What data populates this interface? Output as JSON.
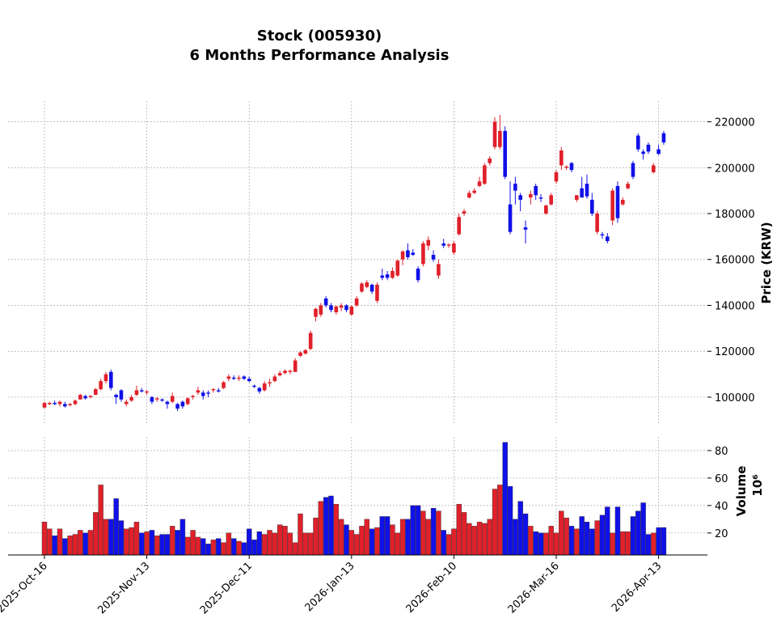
{
  "chart_data": {
    "type": "candlestick",
    "title": "Stock (005930)",
    "subtitle": "6 Months Performance Analysis",
    "ylabel": "Price (KRW)",
    "up_color": "#e0202a",
    "down_color": "#1010e8",
    "grid": true,
    "ylim": [
      88000,
      229000
    ],
    "yticks": [
      100000,
      120000,
      140000,
      160000,
      180000,
      200000,
      220000
    ],
    "categories": [
      "2025-Oct-16",
      null,
      null,
      null,
      null,
      null,
      null,
      null,
      null,
      null,
      null,
      null,
      null,
      null,
      null,
      null,
      null,
      null,
      null,
      null,
      "2025-Nov-13",
      null,
      null,
      null,
      null,
      null,
      null,
      null,
      null,
      null,
      null,
      null,
      null,
      null,
      null,
      null,
      null,
      null,
      null,
      null,
      "2025-Dec-11",
      null,
      null,
      null,
      null,
      null,
      null,
      null,
      null,
      null,
      null,
      null,
      null,
      null,
      null,
      null,
      null,
      null,
      null,
      null,
      "2026-Jan-13",
      null,
      null,
      null,
      null,
      null,
      null,
      null,
      null,
      null,
      null,
      null,
      null,
      null,
      null,
      null,
      null,
      null,
      null,
      null,
      "2026-Feb-10",
      null,
      null,
      null,
      null,
      null,
      null,
      null,
      null,
      null,
      null,
      null,
      null,
      null,
      null,
      null,
      null,
      null,
      null,
      null,
      "2026-Mar-16",
      null,
      null,
      null,
      null,
      null,
      null,
      null,
      null,
      null,
      null,
      null,
      null,
      null,
      null,
      null,
      null,
      null,
      null,
      null,
      "2026-Apr-13",
      null
    ],
    "open": [
      95500,
      97000,
      97500,
      97000,
      97000,
      96500,
      97000,
      99000,
      100500,
      100000,
      101000,
      103500,
      107000,
      111000,
      101000,
      103000,
      97000,
      98500,
      101000,
      103000,
      102000,
      100000,
      99000,
      99000,
      98000,
      98000,
      97000,
      98000,
      97000,
      100000,
      102000,
      102000,
      102000,
      103000,
      103000,
      104000,
      108000,
      108500,
      108000,
      109000,
      108000,
      105000,
      104000,
      103000,
      106000,
      107000,
      109500,
      110500,
      111000,
      111000,
      118000,
      119000,
      121000,
      135000,
      136000,
      143000,
      140000,
      137000,
      139000,
      140000,
      136000,
      140000,
      146000,
      148000,
      149000,
      142000,
      153000,
      153500,
      152000,
      153000,
      160000,
      164000,
      163000,
      156000,
      158000,
      166000,
      162000,
      153000,
      167000,
      166000,
      163000,
      171000,
      180000,
      187000,
      189000,
      192000,
      193000,
      202000,
      209000,
      209000,
      216000,
      184000,
      193000,
      188000,
      174000,
      187000,
      192000,
      187000,
      180000,
      184000,
      194000,
      201000,
      200000,
      202000,
      186000,
      191000,
      193000,
      186000,
      172000,
      171000,
      170000,
      177000,
      192000,
      184000,
      191000,
      202000,
      214000,
      207000,
      210000,
      198000,
      208000,
      215000
    ],
    "high": [
      98000,
      98000,
      98500,
      98500,
      98000,
      97500,
      99000,
      101500,
      101000,
      101000,
      104000,
      108000,
      111000,
      112000,
      101500,
      103500,
      99000,
      101000,
      105000,
      104000,
      103000,
      100500,
      100000,
      99500,
      98500,
      102000,
      97500,
      98500,
      100000,
      101000,
      104500,
      103000,
      103000,
      104000,
      104000,
      107000,
      110000,
      109500,
      109500,
      109500,
      109000,
      105500,
      104500,
      107000,
      108000,
      110000,
      111500,
      112000,
      112000,
      117000,
      120000,
      121000,
      129000,
      139000,
      141000,
      144000,
      141000,
      140000,
      141000,
      140500,
      140000,
      144000,
      150000,
      151000,
      149500,
      150000,
      156000,
      155000,
      156500,
      160000,
      164000,
      167000,
      164500,
      157000,
      168000,
      170000,
      164000,
      160000,
      169000,
      167000,
      168000,
      180000,
      182000,
      190000,
      191000,
      196000,
      202000,
      205000,
      222000,
      223000,
      218000,
      194000,
      196000,
      189000,
      177000,
      190000,
      193000,
      188500,
      184000,
      189000,
      199000,
      209000,
      201000,
      202500,
      188000,
      196000,
      197000,
      189000,
      181000,
      172000,
      171500,
      191000,
      194000,
      187000,
      194000,
      203000,
      215000,
      208000,
      211000,
      202000,
      210000,
      216000
    ],
    "low": [
      95000,
      96500,
      96500,
      96000,
      95500,
      96000,
      96500,
      99000,
      99000,
      99500,
      101000,
      103000,
      106000,
      103000,
      97000,
      98000,
      96000,
      98000,
      100500,
      102000,
      101000,
      97000,
      98000,
      98000,
      95000,
      97500,
      94000,
      95000,
      96500,
      99000,
      101000,
      99000,
      100000,
      102000,
      102000,
      103500,
      107000,
      107500,
      107000,
      107500,
      106500,
      104000,
      101500,
      102500,
      104500,
      106500,
      109000,
      110000,
      110000,
      111000,
      117500,
      118500,
      120500,
      133000,
      135000,
      139000,
      137000,
      136000,
      137500,
      137000,
      135500,
      139500,
      145500,
      147500,
      145000,
      141000,
      151000,
      151000,
      151500,
      152500,
      157500,
      160000,
      161500,
      150000,
      157000,
      164000,
      159000,
      151500,
      165000,
      165000,
      162000,
      170500,
      179000,
      186500,
      188500,
      191500,
      192500,
      201000,
      208000,
      208000,
      195000,
      171000,
      184000,
      181000,
      167000,
      184000,
      186000,
      185000,
      179500,
      183500,
      193000,
      199000,
      199000,
      198000,
      185000,
      187000,
      186500,
      179000,
      171000,
      169000,
      167000,
      175000,
      176000,
      183500,
      190500,
      195000,
      207000,
      203500,
      206000,
      197500,
      205500,
      210000
    ],
    "close": [
      97500,
      97500,
      97000,
      98000,
      96000,
      97000,
      98500,
      101000,
      99500,
      100500,
      103500,
      107000,
      110000,
      104000,
      100000,
      99000,
      98000,
      100000,
      103000,
      102500,
      102500,
      98000,
      99500,
      98500,
      97000,
      100500,
      95000,
      96000,
      99500,
      100500,
      103000,
      100500,
      101500,
      103500,
      102500,
      106500,
      109000,
      108000,
      108500,
      108000,
      107000,
      104500,
      102500,
      106000,
      106500,
      109000,
      110500,
      111500,
      111500,
      116000,
      119500,
      120500,
      128000,
      138500,
      140000,
      140000,
      138000,
      139500,
      140000,
      138000,
      139500,
      143000,
      149500,
      150000,
      146000,
      149000,
      152000,
      152000,
      155000,
      159500,
      163500,
      161000,
      162000,
      151000,
      167000,
      168500,
      160000,
      158000,
      166000,
      166500,
      167000,
      178500,
      181000,
      189000,
      190000,
      194000,
      201000,
      204000,
      220000,
      216000,
      196000,
      172000,
      190000,
      186000,
      173000,
      188500,
      188000,
      186500,
      183500,
      188000,
      198000,
      207500,
      200500,
      199000,
      188000,
      187000,
      187500,
      180000,
      180000,
      170500,
      168000,
      190000,
      178000,
      186000,
      193000,
      196000,
      208000,
      206000,
      207000,
      201000,
      206000,
      211000
    ],
    "volume": {
      "ylabel": "Volume",
      "offset": "10⁶",
      "ylim": [
        4,
        90
      ],
      "yticks": [
        20,
        40,
        60,
        80
      ],
      "values": [
        28,
        23,
        18,
        23,
        16,
        18,
        19,
        22,
        20,
        22,
        35,
        55,
        30,
        30,
        45,
        29,
        23,
        24,
        28,
        20,
        21,
        22,
        18,
        19,
        19,
        25,
        22,
        30,
        17,
        22,
        17,
        16,
        12,
        15,
        16,
        13,
        20,
        16,
        14,
        13,
        23,
        15,
        21,
        19,
        22,
        20,
        26,
        25,
        20,
        13,
        34,
        20,
        20,
        31,
        43,
        46,
        47,
        41,
        30,
        26,
        22,
        19,
        25,
        30,
        23,
        24,
        32,
        32,
        26,
        20,
        30,
        30,
        40,
        40,
        36,
        30,
        38,
        36,
        22,
        19,
        23,
        41,
        35,
        27,
        25,
        28,
        27,
        30,
        52,
        55,
        86,
        54,
        30,
        43,
        34,
        25,
        21,
        20,
        20,
        25,
        20,
        36,
        31,
        25,
        23,
        32,
        28,
        23,
        29,
        33,
        39,
        20,
        39,
        21,
        21,
        32,
        36,
        42,
        19,
        20,
        24,
        24
      ]
    }
  }
}
